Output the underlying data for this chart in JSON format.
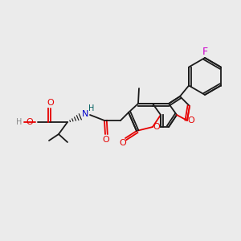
{
  "bg_color": "#ebebeb",
  "bond_color": "#1a1a1a",
  "o_color": "#e60000",
  "n_color": "#006060",
  "f_color": "#cc00cc",
  "h_color": "#888888",
  "blue_color": "#0000cc"
}
